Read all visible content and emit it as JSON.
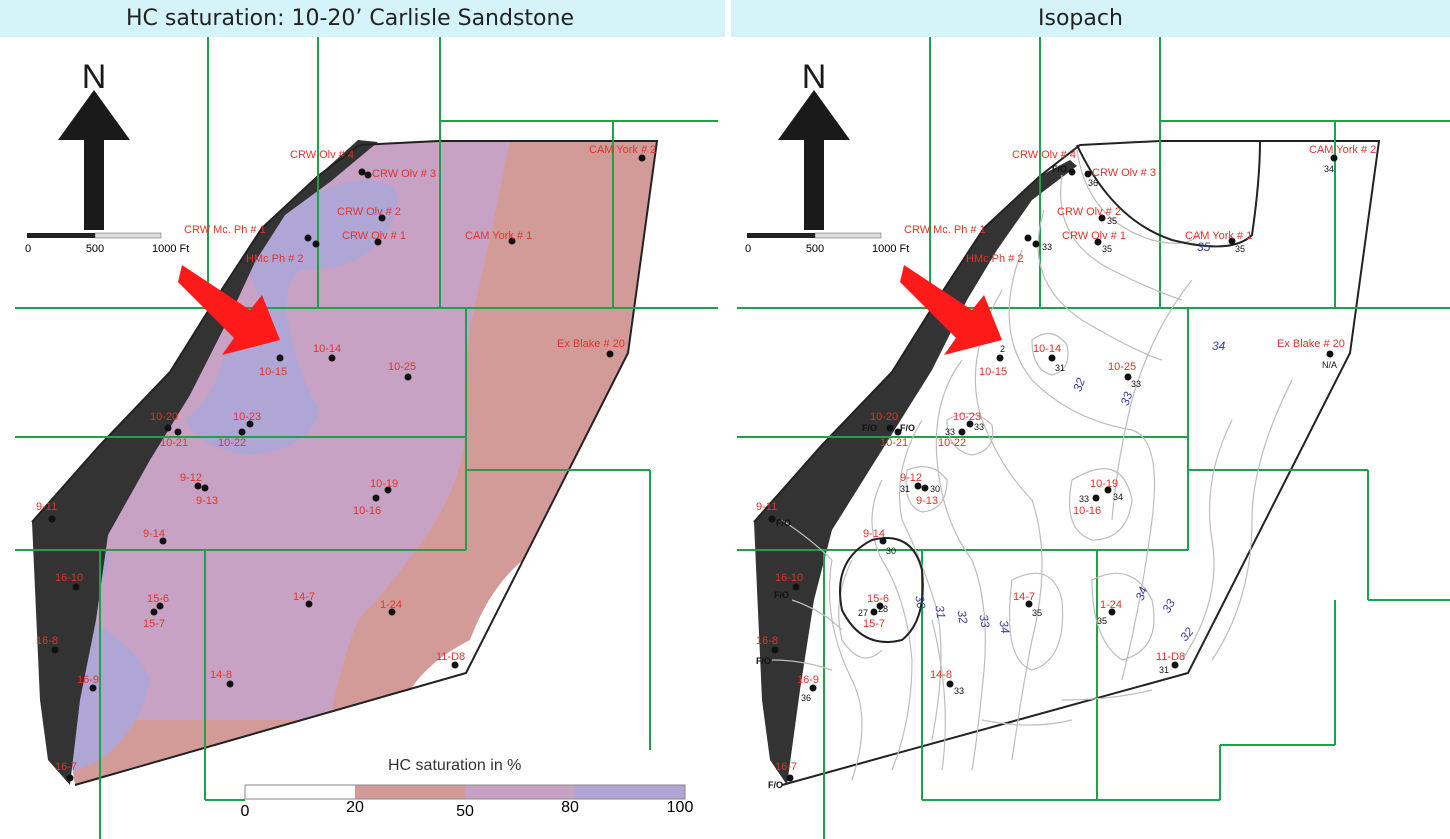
{
  "titles": {
    "left": "HC saturation: 10-20’ Carlisle Sandstone",
    "right": "Isopach"
  },
  "north_label": "N",
  "scale_bar": {
    "ticks": [
      "0",
      "500",
      "1000 Ft"
    ]
  },
  "legend": {
    "title": "HC saturation in %",
    "ticks": [
      "0",
      "20",
      "50",
      "80",
      "100"
    ],
    "class_colors": [
      "#ffffff",
      "#d39b98",
      "#c7a2c5",
      "#b0a6d6"
    ]
  },
  "colors": {
    "title_bar": "#d4f4fa",
    "grid_lines": "#1aa34a",
    "well_label": "#e0342c",
    "contour_value": "#3b3fa0",
    "fault_zone": "#333333",
    "arrow": "#ff1a1a"
  },
  "left_wells": [
    {
      "name": "CRW Olv # 4"
    },
    {
      "name": "CRW Olv # 3"
    },
    {
      "name": "CAM York # 2"
    },
    {
      "name": "CRW Olv # 2"
    },
    {
      "name": "CRW Mc. Ph # 1"
    },
    {
      "name": "CRW Olv # 1"
    },
    {
      "name": "CAM York # 1"
    },
    {
      "name": "HMc Ph # 2"
    },
    {
      "name": "Ex Blake # 20"
    },
    {
      "name": "10-14"
    },
    {
      "name": "10-25"
    },
    {
      "name": "10-15"
    },
    {
      "name": "10-20"
    },
    {
      "name": "10-23"
    },
    {
      "name": "10-21"
    },
    {
      "name": "10-22"
    },
    {
      "name": "9-12"
    },
    {
      "name": "9-13"
    },
    {
      "name": "10-19"
    },
    {
      "name": "10-16"
    },
    {
      "name": "9-11"
    },
    {
      "name": "9-14"
    },
    {
      "name": "16-10"
    },
    {
      "name": "15-6"
    },
    {
      "name": "15-7"
    },
    {
      "name": "14-7"
    },
    {
      "name": "1-24"
    },
    {
      "name": "16-8"
    },
    {
      "name": "11-D8"
    },
    {
      "name": "16-9"
    },
    {
      "name": "14-8"
    },
    {
      "name": "16-7"
    }
  ],
  "right_wells": [
    {
      "name": "CRW Olv # 4"
    },
    {
      "name": "CRW Olv # 3"
    },
    {
      "name": "CAM York # 2"
    },
    {
      "name": "CRW Olv # 2"
    },
    {
      "name": "CRW Mc. Ph # 1"
    },
    {
      "name": "CRW Olv # 1"
    },
    {
      "name": "CAM York # 1"
    },
    {
      "name": "HMc Ph # 2"
    },
    {
      "name": "Ex Blake # 20"
    },
    {
      "name": "10-14"
    },
    {
      "name": "10-25"
    },
    {
      "name": "10-15"
    },
    {
      "name": "10-20"
    },
    {
      "name": "10-23"
    },
    {
      "name": "10-21"
    },
    {
      "name": "10-22"
    },
    {
      "name": "9-12"
    },
    {
      "name": "9-13"
    },
    {
      "name": "10-19"
    },
    {
      "name": "10-16"
    },
    {
      "name": "9-11"
    },
    {
      "name": "9-14"
    },
    {
      "name": "16-10"
    },
    {
      "name": "15-6"
    },
    {
      "name": "15-7"
    },
    {
      "name": "14-7"
    },
    {
      "name": "1-24"
    },
    {
      "name": "16-8"
    },
    {
      "name": "11-D8"
    },
    {
      "name": "16-9"
    },
    {
      "name": "14-8"
    },
    {
      "name": "16-7"
    }
  ],
  "right_values": [
    "F/O",
    "36",
    "34",
    "35",
    "33",
    "35",
    "35",
    "N/A",
    "2",
    "31",
    "33",
    "F/O",
    "F/O",
    "33",
    "33",
    "31",
    "30",
    "33",
    "34",
    "F/O",
    "30",
    "F/O",
    "27",
    "28",
    "35",
    "35",
    "F/O",
    "31",
    "36",
    "33",
    "F/O"
  ],
  "contour_labels": [
    "35",
    "34",
    "32",
    "33",
    "30",
    "31",
    "32",
    "33",
    "34",
    "34",
    "33",
    "32"
  ]
}
